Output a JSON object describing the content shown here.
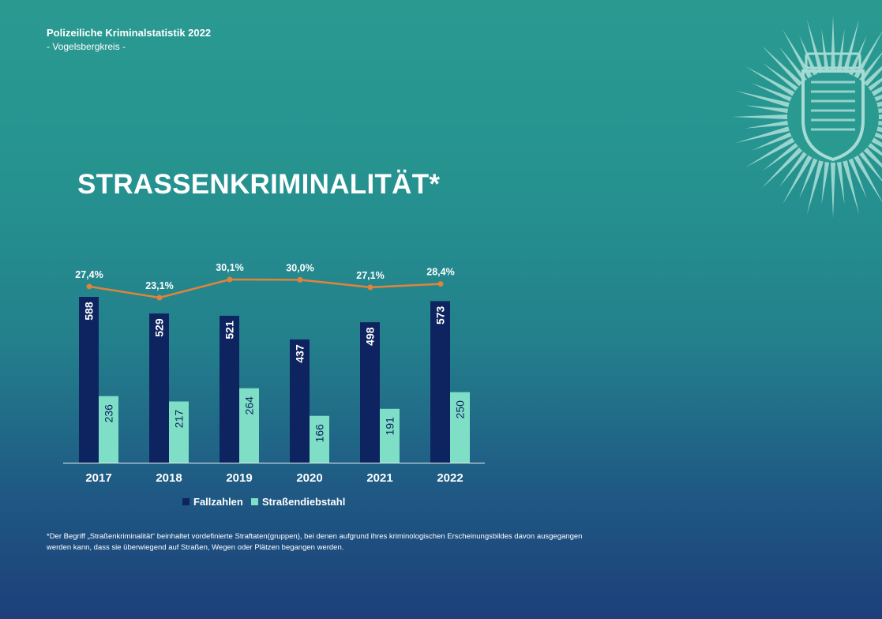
{
  "header": {
    "title": "Polizeiliche Kriminalstatistik 2022",
    "subtitle": "- Vogelsbergkreis -"
  },
  "main_title": "STRASSENKRIMINALITÄT*",
  "footnote": "*Der Begriff „Straßenkriminalität“ beinhaltet vordefinierte Straftaten(gruppen), bei denen aufgrund ihres kriminologischen Erscheinungsbildes davon ausgegangen werden kann, dass sie überwiegend auf Straßen, Wegen oder Plätzen begangen werden.",
  "emblem": {
    "icon": "police-star-hessen-coat-of-arms-icon",
    "color": "#a6dcd5"
  },
  "colors": {
    "fallzahlen": "#0e2460",
    "strassendiebstahl": "#7fdec6",
    "quote_line": "#e0833c",
    "axis": "#e6f2f2"
  },
  "chart_data": {
    "type": "bar",
    "categories": [
      "2017",
      "2018",
      "2019",
      "2020",
      "2021",
      "2022"
    ],
    "series": [
      {
        "name": "Fallzahlen",
        "values": [
          588,
          529,
          521,
          437,
          498,
          573
        ]
      },
      {
        "name": "Straßendiebstahl",
        "values": [
          236,
          217,
          264,
          166,
          191,
          250
        ]
      }
    ],
    "line_series": {
      "values": [
        27.4,
        23.1,
        30.1,
        30.0,
        27.1,
        28.4
      ],
      "labels": [
        "27,4%",
        "23,1%",
        "30,1%",
        "30,0%",
        "27,1%",
        "28,4%"
      ]
    },
    "ylim": [
      0,
      600
    ],
    "legend": "bottom",
    "grid": false
  }
}
